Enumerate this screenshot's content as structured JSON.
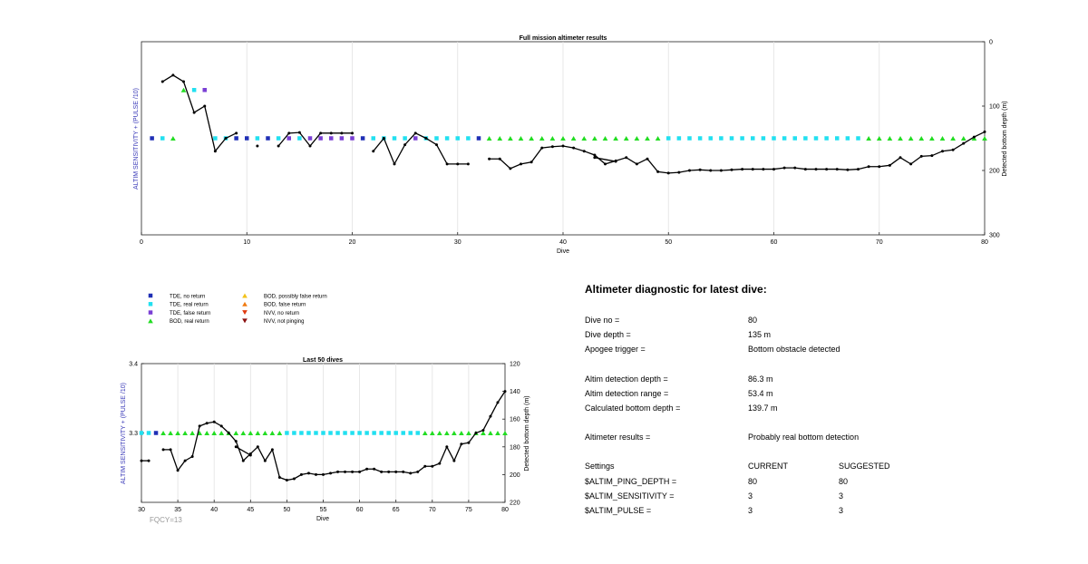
{
  "colors": {
    "tde_no_return": "#1f2fb5",
    "tde_real_return": "#22e0f0",
    "tde_false_return": "#7a3fd4",
    "bod_real_return": "#22dd22",
    "bod_possibly_false": "#f2c21a",
    "bod_false_return": "#f07a10",
    "nvv_no_return": "#e03a10",
    "nvv_not_pinging": "#8a1010",
    "ylabel_left": "#3a3ab8"
  },
  "legend": {
    "items": [
      {
        "label": "TDE, no return",
        "marker": "square",
        "color_key": "tde_no_return"
      },
      {
        "label": "TDE, real return",
        "marker": "square",
        "color_key": "tde_real_return"
      },
      {
        "label": "TDE, false return",
        "marker": "square",
        "color_key": "tde_false_return"
      },
      {
        "label": "BOD, real return",
        "marker": "triangle-up",
        "color_key": "bod_real_return"
      },
      {
        "label": "BOD, possibly false return",
        "marker": "triangle-up",
        "color_key": "bod_possibly_false"
      },
      {
        "label": "BOD, false return",
        "marker": "triangle-up",
        "color_key": "bod_false_return"
      },
      {
        "label": "NVV, no return",
        "marker": "triangle-down",
        "color_key": "nvv_no_return"
      },
      {
        "label": "NVV, not pinging",
        "marker": "triangle-down",
        "color_key": "nvv_not_pinging"
      }
    ]
  },
  "chart_data": [
    {
      "type": "scatter",
      "title": "Full mission altimeter results",
      "xlabel": "Dive",
      "ylabel_left": "ALTIM SENSITIVITY + (PULSE /10)",
      "ylabel_right": "Detected bottom depth (m)",
      "xlim": [
        0,
        80
      ],
      "xticks": [
        "0",
        "10",
        "20",
        "30",
        "40",
        "50",
        "60",
        "70",
        "80"
      ],
      "xtick_values": [
        0,
        10,
        20,
        30,
        40,
        50,
        60,
        70,
        80
      ],
      "ylim_right": [
        0,
        300
      ],
      "yticks_right": [
        "0",
        "100",
        "200",
        "300"
      ],
      "ytick_values_right": [
        0,
        100,
        200,
        300
      ],
      "grid": "vertical",
      "setting_level": 3.3,
      "markers": [
        {
          "dive": 1,
          "type": "tde_no_return"
        },
        {
          "dive": 2,
          "type": "tde_real_return"
        },
        {
          "dive": 3,
          "type": "bod_real_return"
        },
        {
          "dive": 4,
          "type": "bod_real_return",
          "y": 3.4
        },
        {
          "dive": 5,
          "type": "tde_real_return",
          "y": 3.4
        },
        {
          "dive": 6,
          "type": "tde_false_return",
          "y": 3.4
        },
        {
          "dive": 7,
          "type": "tde_real_return"
        },
        {
          "dive": 8,
          "type": "tde_real_return"
        },
        {
          "dive": 9,
          "type": "tde_no_return"
        },
        {
          "dive": 10,
          "type": "tde_no_return"
        },
        {
          "dive": 11,
          "type": "tde_real_return"
        },
        {
          "dive": 12,
          "type": "tde_no_return"
        },
        {
          "dive": 13,
          "type": "tde_real_return"
        },
        {
          "dive": 14,
          "type": "tde_false_return"
        },
        {
          "dive": 15,
          "type": "tde_real_return"
        },
        {
          "dive": 16,
          "type": "tde_false_return"
        },
        {
          "dive": 17,
          "type": "tde_false_return"
        },
        {
          "dive": 18,
          "type": "tde_false_return"
        },
        {
          "dive": 19,
          "type": "tde_false_return"
        },
        {
          "dive": 20,
          "type": "tde_false_return"
        },
        {
          "dive": 21,
          "type": "tde_no_return"
        },
        {
          "dive": 22,
          "type": "tde_real_return"
        },
        {
          "dive": 23,
          "type": "tde_real_return"
        },
        {
          "dive": 24,
          "type": "tde_real_return"
        },
        {
          "dive": 25,
          "type": "tde_real_return"
        },
        {
          "dive": 26,
          "type": "tde_false_return"
        },
        {
          "dive": 27,
          "type": "tde_real_return"
        },
        {
          "dive": 28,
          "type": "tde_real_return"
        },
        {
          "dive": 29,
          "type": "tde_real_return"
        },
        {
          "dive": 30,
          "type": "tde_real_return"
        },
        {
          "dive": 31,
          "type": "tde_real_return"
        },
        {
          "dive": 32,
          "type": "tde_no_return"
        },
        {
          "dive": 33,
          "type": "bod_real_return"
        },
        {
          "dive": 34,
          "type": "bod_real_return"
        },
        {
          "dive": 35,
          "type": "bod_real_return"
        },
        {
          "dive": 36,
          "type": "bod_real_return"
        },
        {
          "dive": 37,
          "type": "bod_real_return"
        },
        {
          "dive": 38,
          "type": "bod_real_return"
        },
        {
          "dive": 39,
          "type": "bod_real_return"
        },
        {
          "dive": 40,
          "type": "bod_real_return"
        },
        {
          "dive": 41,
          "type": "bod_real_return"
        },
        {
          "dive": 42,
          "type": "bod_real_return"
        },
        {
          "dive": 43,
          "type": "bod_real_return"
        },
        {
          "dive": 44,
          "type": "bod_real_return"
        },
        {
          "dive": 45,
          "type": "bod_real_return"
        },
        {
          "dive": 46,
          "type": "bod_real_return"
        },
        {
          "dive": 47,
          "type": "bod_real_return"
        },
        {
          "dive": 48,
          "type": "bod_real_return"
        },
        {
          "dive": 49,
          "type": "bod_real_return"
        },
        {
          "dive": 50,
          "type": "tde_real_return"
        },
        {
          "dive": 51,
          "type": "tde_real_return"
        },
        {
          "dive": 52,
          "type": "tde_real_return"
        },
        {
          "dive": 53,
          "type": "tde_real_return"
        },
        {
          "dive": 54,
          "type": "tde_real_return"
        },
        {
          "dive": 55,
          "type": "tde_real_return"
        },
        {
          "dive": 56,
          "type": "tde_real_return"
        },
        {
          "dive": 57,
          "type": "tde_real_return"
        },
        {
          "dive": 58,
          "type": "tde_real_return"
        },
        {
          "dive": 59,
          "type": "tde_real_return"
        },
        {
          "dive": 60,
          "type": "tde_real_return"
        },
        {
          "dive": 61,
          "type": "tde_real_return"
        },
        {
          "dive": 62,
          "type": "tde_real_return"
        },
        {
          "dive": 63,
          "type": "tde_real_return"
        },
        {
          "dive": 64,
          "type": "tde_real_return"
        },
        {
          "dive": 65,
          "type": "tde_real_return"
        },
        {
          "dive": 66,
          "type": "tde_real_return"
        },
        {
          "dive": 67,
          "type": "tde_real_return"
        },
        {
          "dive": 68,
          "type": "tde_real_return"
        },
        {
          "dive": 69,
          "type": "bod_real_return"
        },
        {
          "dive": 70,
          "type": "bod_real_return"
        },
        {
          "dive": 71,
          "type": "bod_real_return"
        },
        {
          "dive": 72,
          "type": "bod_real_return"
        },
        {
          "dive": 73,
          "type": "bod_real_return"
        },
        {
          "dive": 74,
          "type": "bod_real_return"
        },
        {
          "dive": 75,
          "type": "bod_real_return"
        },
        {
          "dive": 76,
          "type": "bod_real_return"
        },
        {
          "dive": 77,
          "type": "bod_real_return"
        },
        {
          "dive": 78,
          "type": "bod_real_return"
        },
        {
          "dive": 79,
          "type": "bod_real_return"
        },
        {
          "dive": 80,
          "type": "bod_real_return"
        }
      ],
      "depth_segments": [
        [
          [
            2,
            62
          ],
          [
            3,
            52
          ],
          [
            4,
            62
          ],
          [
            5,
            110
          ],
          [
            6,
            100
          ],
          [
            7,
            170
          ],
          [
            8,
            150
          ],
          [
            9,
            142
          ]
        ],
        [
          [
            11,
            162
          ]
        ],
        [
          [
            13,
            162
          ],
          [
            14,
            142
          ],
          [
            15,
            141
          ],
          [
            16,
            162
          ],
          [
            17,
            142
          ],
          [
            18,
            142
          ],
          [
            19,
            142
          ],
          [
            20,
            142
          ]
        ],
        [
          [
            22,
            170
          ],
          [
            23,
            150
          ],
          [
            24,
            190
          ],
          [
            25,
            160
          ],
          [
            26,
            142
          ],
          [
            27,
            150
          ],
          [
            28,
            160
          ],
          [
            29,
            190
          ],
          [
            30,
            190
          ],
          [
            31,
            190
          ]
        ],
        [
          [
            33,
            182
          ],
          [
            34,
            182
          ],
          [
            35,
            197
          ],
          [
            36,
            190
          ],
          [
            37,
            187
          ],
          [
            38,
            165
          ],
          [
            39,
            163
          ],
          [
            40,
            162
          ],
          [
            41,
            165
          ],
          [
            42,
            170
          ],
          [
            43,
            176
          ],
          [
            44,
            190
          ],
          [
            45,
            185
          ],
          [
            46,
            180
          ],
          [
            47,
            190
          ],
          [
            48,
            182
          ],
          [
            49,
            202
          ],
          [
            50,
            204
          ],
          [
            51,
            203
          ],
          [
            52,
            200
          ],
          [
            53,
            199
          ],
          [
            54,
            200
          ],
          [
            55,
            200
          ],
          [
            56,
            199
          ],
          [
            57,
            198
          ],
          [
            58,
            198
          ],
          [
            59,
            198
          ],
          [
            60,
            198
          ],
          [
            61,
            196
          ],
          [
            62,
            196
          ],
          [
            63,
            198
          ],
          [
            64,
            198
          ],
          [
            65,
            198
          ],
          [
            66,
            198
          ],
          [
            67,
            199
          ],
          [
            68,
            198
          ],
          [
            69,
            194
          ],
          [
            70,
            194
          ],
          [
            71,
            192
          ],
          [
            72,
            180
          ],
          [
            73,
            190
          ],
          [
            74,
            178
          ],
          [
            75,
            177
          ],
          [
            76,
            170
          ],
          [
            77,
            168
          ],
          [
            78,
            158
          ],
          [
            79,
            148
          ],
          [
            80,
            140
          ]
        ],
        [
          [
            43,
            180
          ],
          [
            45,
            186
          ]
        ]
      ]
    },
    {
      "type": "scatter",
      "title": "Last 50 dives",
      "xlabel": "Dive",
      "ylabel_left": "ALTIM SENSITIVITY + (PULSE /10)",
      "ylabel_right": "Detected bottom depth (m)",
      "xlim": [
        30,
        80
      ],
      "xticks": [
        "30",
        "35",
        "40",
        "45",
        "50",
        "55",
        "60",
        "65",
        "70",
        "75",
        "80"
      ],
      "xtick_values": [
        30,
        35,
        40,
        45,
        50,
        55,
        60,
        65,
        70,
        75,
        80
      ],
      "ylim_left": [
        3.2,
        3.4
      ],
      "yticks_left": [
        "3.4",
        "3.3"
      ],
      "ytick_values_left": [
        3.4,
        3.3
      ],
      "ylim_right": [
        120,
        220
      ],
      "yticks_right": [
        "120",
        "140",
        "160",
        "180",
        "200",
        "220"
      ],
      "ytick_values_right": [
        120,
        140,
        160,
        180,
        200,
        220
      ],
      "grid": "vertical",
      "setting_level": 3.3,
      "annotation": "FQCY=13"
    }
  ],
  "diagnostic": {
    "title": "Altimeter diagnostic for latest dive:",
    "rows": [
      {
        "label": "Dive no =",
        "value": "80"
      },
      {
        "label": "Dive depth =",
        "value": "135 m"
      },
      {
        "label": "Apogee trigger =",
        "value": "Bottom obstacle detected"
      },
      {
        "label": "Altim detection depth =",
        "value": "86.3 m"
      },
      {
        "label": "Altim detection range =",
        "value": "53.4 m"
      },
      {
        "label": "Calculated bottom depth =",
        "value": "139.7 m"
      },
      {
        "label": "Altimeter results =",
        "value": "Probably real bottom detection"
      }
    ],
    "settings": {
      "header": {
        "label": "Settings",
        "current": "CURRENT",
        "suggested": "SUGGESTED"
      },
      "items": [
        {
          "label": "$ALTIM_PING_DEPTH =",
          "current": "80",
          "suggested": "80"
        },
        {
          "label": "$ALTIM_SENSITIVITY =",
          "current": "3",
          "suggested": "3"
        },
        {
          "label": "$ALTIM_PULSE =",
          "current": "3",
          "suggested": "3"
        }
      ]
    }
  }
}
